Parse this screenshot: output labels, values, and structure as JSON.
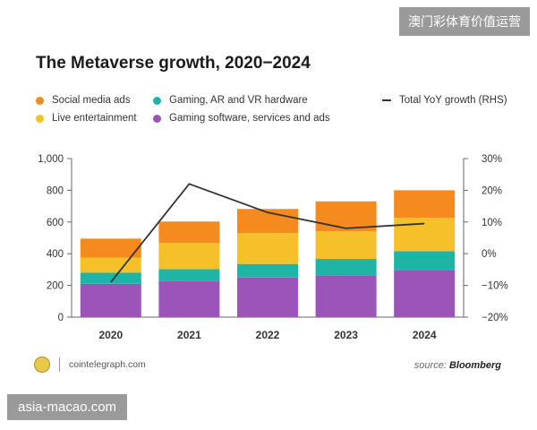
{
  "colors": {
    "social_media_ads": "#f58a1f",
    "gaming_hardware": "#1fb5a6",
    "live_entertainment": "#f5c02a",
    "gaming_software": "#9b55b9",
    "growth_line": "#333333"
  },
  "chart_data": {
    "type": "bar",
    "stacked": true,
    "title": "The Metaverse growth, 2020−2024",
    "categories": [
      "2020",
      "2021",
      "2022",
      "2023",
      "2024"
    ],
    "series": [
      {
        "name": "Gaming software, services and ads",
        "color_key": "gaming_software",
        "values": [
          210,
          228,
          250,
          262,
          298
        ]
      },
      {
        "name": "Gaming, AR and VR hardware",
        "color_key": "gaming_hardware",
        "values": [
          70,
          75,
          85,
          105,
          118
        ]
      },
      {
        "name": "Live entertainment",
        "color_key": "live_entertainment",
        "values": [
          95,
          165,
          195,
          175,
          210
        ]
      },
      {
        "name": "Social media ads",
        "color_key": "social_media_ads",
        "values": [
          120,
          135,
          152,
          188,
          174
        ]
      }
    ],
    "line_series": {
      "name": "Total YoY growth (RHS)",
      "axis": "right",
      "x": [
        "2020",
        "2021",
        "2022",
        "2023",
        "2024"
      ],
      "values": [
        -9,
        22,
        13,
        8,
        9.5
      ]
    },
    "y_left": {
      "min": 0,
      "max": 1000,
      "ticks": [
        "0",
        "200",
        "400",
        "600",
        "800",
        "1,000"
      ],
      "tick_values": [
        0,
        200,
        400,
        600,
        800,
        1000
      ]
    },
    "y_right": {
      "min": -20,
      "max": 30,
      "ticks": [
        "−20%",
        "−10%",
        "0%",
        "10%",
        "20%",
        "30%"
      ],
      "tick_values": [
        -20,
        -10,
        0,
        10,
        20,
        30
      ]
    },
    "grid": false,
    "legend_position": "top"
  },
  "legend": {
    "social_media_ads": "Social media ads",
    "live_entertainment": "Live entertainment",
    "gaming_hardware": "Gaming, AR and VR hardware",
    "gaming_software": "Gaming software, services and ads",
    "growth": "Total YoY growth (RHS)"
  },
  "footer": {
    "site": "cointelegraph.com",
    "source_prefix": "source: ",
    "source_name": "Bloomberg"
  },
  "watermarks": {
    "top_right": "澳门彩体育价值运营",
    "bottom_left": "asia-macao.com"
  }
}
